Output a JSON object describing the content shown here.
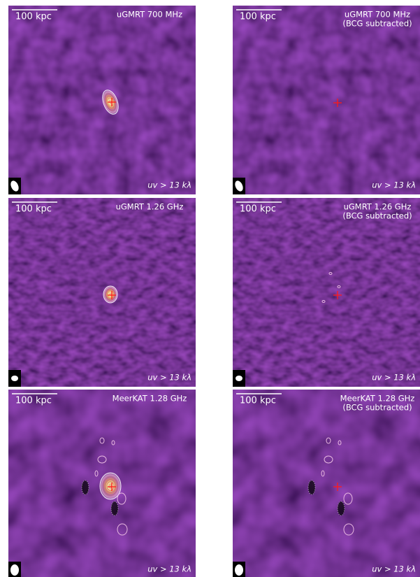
{
  "panels": [
    {
      "scale_bar": "100 kpc",
      "title": "uGMRT 700 MHz",
      "uv_cut": "uv > 13 kλ"
    },
    {
      "scale_bar": "100 kpc",
      "title": "uGMRT 700 MHz",
      "subtitle": "(BCG subtracted)",
      "uv_cut": "uv > 13 kλ"
    },
    {
      "scale_bar": "100 kpc",
      "title": "uGMRT 1.26 GHz",
      "uv_cut": "uv > 13 kλ"
    },
    {
      "scale_bar": "100 kpc",
      "title": "uGMRT 1.26 GHz",
      "subtitle": "(BCG subtracted)",
      "uv_cut": "uv > 13 kλ"
    },
    {
      "scale_bar": "100 kpc",
      "title": "MeerKAT 1.28 GHz",
      "uv_cut": "uv > 13 kλ"
    },
    {
      "scale_bar": "100 kpc",
      "title": "MeerKAT 1.28 GHz",
      "subtitle": "(BCG subtracted)",
      "uv_cut": "uv > 13 kλ"
    }
  ]
}
